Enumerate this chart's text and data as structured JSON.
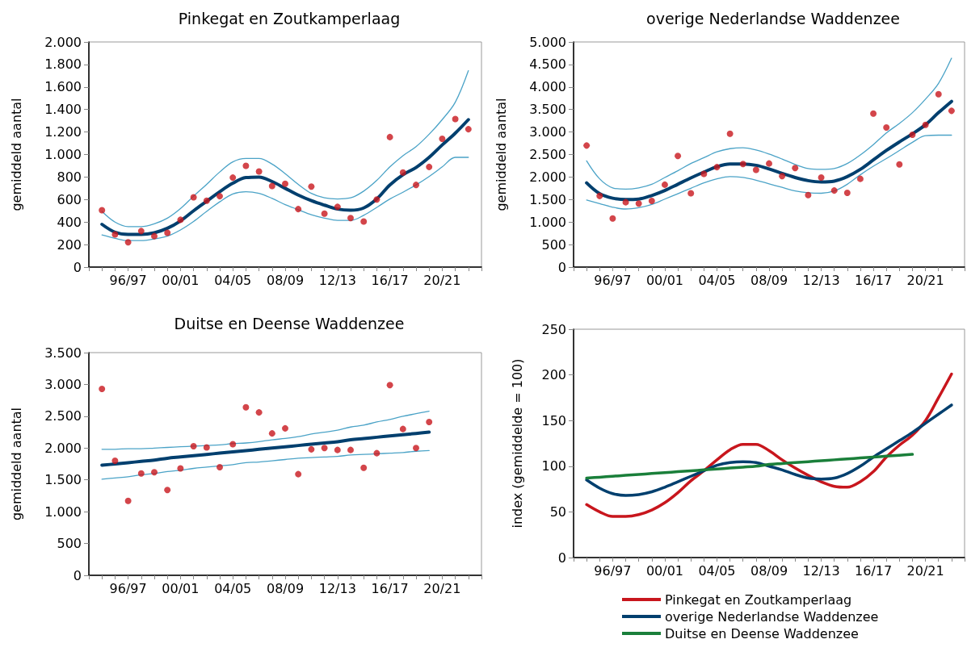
{
  "chart_data": [
    {
      "type": "line",
      "title": "Pinkegat en Zoutkamperlaag",
      "ylabel": "gemiddeld aantal",
      "categories": [
        null,
        null,
        null,
        "96/97",
        null,
        null,
        null,
        "00/01",
        null,
        null,
        null,
        "04/05",
        null,
        null,
        null,
        "08/09",
        null,
        null,
        null,
        "12/13",
        null,
        null,
        null,
        "16/17",
        null,
        null,
        null,
        "20/21",
        null,
        null,
        null
      ],
      "ylim": [
        0,
        2000
      ],
      "yticks": [
        0,
        200,
        400,
        600,
        800,
        {
          "value": 1000,
          "label": "1.000"
        },
        {
          "value": 1200,
          "label": "1.200"
        },
        {
          "value": 1400,
          "label": "1.400"
        },
        {
          "value": 1600,
          "label": "1.600"
        },
        {
          "value": 1800,
          "label": "1.800"
        },
        {
          "value": 2000,
          "label": "2.000"
        }
      ],
      "grid": false,
      "series": [
        {
          "color": "#4ba3c7",
          "values": [
            null,
            495,
            400,
            360,
            360,
            385,
            435,
            520,
            630,
            735,
            845,
            935,
            965,
            965,
            915,
            830,
            735,
            655,
            615,
            605,
            615,
            675,
            770,
            890,
            990,
            1070,
            1180,
            1310,
            1465,
            1745,
            null
          ]
        },
        {
          "color": "#003f6e",
          "values": [
            null,
            380,
            310,
            290,
            290,
            305,
            345,
            410,
            500,
            585,
            670,
            745,
            795,
            800,
            760,
            700,
            640,
            590,
            550,
            515,
            505,
            525,
            605,
            730,
            820,
            885,
            975,
            1085,
            1190,
            1310,
            null
          ]
        },
        {
          "color": "#4ba3c7",
          "values": [
            null,
            285,
            255,
            235,
            235,
            250,
            275,
            330,
            405,
            495,
            580,
            650,
            670,
            655,
            610,
            555,
            510,
            465,
            435,
            415,
            415,
            460,
            530,
            605,
            665,
            730,
            805,
            890,
            975,
            975,
            null
          ]
        },
        {
          "type": "scatter",
          "marker": "circle",
          "color": "#c8161d",
          "values": [
            null,
            505,
            290,
            220,
            320,
            275,
            305,
            420,
            620,
            590,
            630,
            795,
            900,
            850,
            720,
            740,
            515,
            715,
            475,
            535,
            435,
            405,
            600,
            1155,
            840,
            730,
            890,
            1140,
            1315,
            1225,
            null
          ]
        }
      ]
    },
    {
      "type": "line",
      "title": "overige Nederlandse Waddenzee",
      "ylabel": "gemiddeld aantal",
      "categories": [
        null,
        null,
        null,
        "96/97",
        null,
        null,
        null,
        "00/01",
        null,
        null,
        null,
        "04/05",
        null,
        null,
        null,
        "08/09",
        null,
        null,
        null,
        "12/13",
        null,
        null,
        null,
        "16/17",
        null,
        null,
        null,
        "20/21",
        null,
        null,
        null
      ],
      "ylim": [
        0,
        5000
      ],
      "yticks": [
        0,
        500,
        {
          "value": 1000,
          "label": "1.000"
        },
        {
          "value": 1500,
          "label": "1.500"
        },
        {
          "value": 2000,
          "label": "2.000"
        },
        {
          "value": 2500,
          "label": "2.500"
        },
        {
          "value": 3000,
          "label": "3.000"
        },
        {
          "value": 3500,
          "label": "3.500"
        },
        {
          "value": 4000,
          "label": "4.000"
        },
        {
          "value": 4500,
          "label": "4.500"
        },
        {
          "value": 5000,
          "label": "5.000"
        }
      ],
      "grid": false,
      "series": [
        {
          "color": "#4ba3c7",
          "values": [
            null,
            2360,
            1960,
            1760,
            1730,
            1760,
            1840,
            1990,
            2140,
            2300,
            2430,
            2560,
            2630,
            2650,
            2600,
            2510,
            2400,
            2280,
            2190,
            2170,
            2190,
            2300,
            2490,
            2720,
            2980,
            3190,
            3430,
            3730,
            4080,
            4640,
            null
          ]
        },
        {
          "color": "#003f6e",
          "values": [
            null,
            1870,
            1630,
            1530,
            1500,
            1510,
            1590,
            1700,
            1840,
            1980,
            2110,
            2230,
            2290,
            2290,
            2260,
            2180,
            2080,
            1990,
            1920,
            1890,
            1910,
            2010,
            2170,
            2380,
            2590,
            2780,
            2960,
            3160,
            3430,
            3680,
            null
          ]
        },
        {
          "color": "#4ba3c7",
          "values": [
            null,
            1490,
            1410,
            1330,
            1290,
            1320,
            1390,
            1510,
            1630,
            1750,
            1870,
            1960,
            2010,
            1990,
            1930,
            1850,
            1770,
            1690,
            1650,
            1640,
            1690,
            1840,
            2050,
            2240,
            2410,
            2590,
            2770,
            2920,
            2930,
            2930,
            null
          ]
        },
        {
          "type": "scatter",
          "marker": "circle",
          "color": "#c8161d",
          "values": [
            null,
            2700,
            1580,
            1080,
            1440,
            1410,
            1470,
            1830,
            2470,
            1640,
            2070,
            2220,
            2960,
            2290,
            2160,
            2300,
            2020,
            2200,
            1600,
            1990,
            1700,
            1650,
            1960,
            3410,
            3100,
            2280,
            2940,
            3160,
            3840,
            3470,
            null
          ]
        }
      ]
    },
    {
      "type": "line",
      "title": "Duitse en Deense Waddenzee",
      "ylabel": "gemiddeld aantal",
      "categories": [
        null,
        null,
        null,
        "96/97",
        null,
        null,
        null,
        "00/01",
        null,
        null,
        null,
        "04/05",
        null,
        null,
        null,
        "08/09",
        null,
        null,
        null,
        "12/13",
        null,
        null,
        null,
        "16/17",
        null,
        null,
        null,
        "20/21",
        null,
        null,
        null
      ],
      "ylim": [
        0,
        3500
      ],
      "yticks": [
        0,
        500,
        {
          "value": 1000,
          "label": "1.000"
        },
        {
          "value": 1500,
          "label": "1.500"
        },
        {
          "value": 2000,
          "label": "2.000"
        },
        {
          "value": 2500,
          "label": "2.500"
        },
        {
          "value": 3000,
          "label": "3.000"
        },
        {
          "value": 3500,
          "label": "3.500"
        }
      ],
      "grid": false,
      "series": [
        {
          "color": "#4ba3c7",
          "values": [
            null,
            1980,
            1980,
            1990,
            1990,
            2000,
            2010,
            2020,
            2030,
            2040,
            2050,
            2070,
            2080,
            2100,
            2130,
            2150,
            2180,
            2220,
            2250,
            2280,
            2330,
            2360,
            2410,
            2450,
            2500,
            2540,
            2580,
            null,
            null,
            null,
            null
          ]
        },
        {
          "color": "#003f6e",
          "values": [
            null,
            1730,
            1750,
            1770,
            1790,
            1810,
            1840,
            1860,
            1880,
            1900,
            1920,
            1940,
            1960,
            1980,
            2000,
            2020,
            2040,
            2060,
            2080,
            2100,
            2130,
            2150,
            2170,
            2190,
            2210,
            2230,
            2250,
            null,
            null,
            null,
            null
          ]
        },
        {
          "color": "#4ba3c7",
          "values": [
            null,
            1510,
            1530,
            1550,
            1580,
            1600,
            1630,
            1650,
            1680,
            1700,
            1720,
            1740,
            1770,
            1780,
            1800,
            1820,
            1840,
            1850,
            1860,
            1870,
            1890,
            1900,
            1910,
            1920,
            1930,
            1950,
            1960,
            null,
            null,
            null,
            null
          ]
        },
        {
          "type": "scatter",
          "marker": "circle",
          "color": "#c8161d",
          "values": [
            null,
            2930,
            1800,
            1170,
            1600,
            1620,
            1340,
            1680,
            2030,
            2010,
            1700,
            2060,
            2640,
            2560,
            2230,
            2310,
            1590,
            1980,
            2000,
            1970,
            1970,
            1690,
            1920,
            2990,
            2300,
            2000,
            2410,
            null,
            null,
            null,
            null
          ]
        }
      ]
    },
    {
      "type": "line",
      "ylabel": "index (gemiddelde = 100)",
      "categories": [
        null,
        null,
        null,
        "96/97",
        null,
        null,
        null,
        "00/01",
        null,
        null,
        null,
        "04/05",
        null,
        null,
        null,
        "08/09",
        null,
        null,
        null,
        "12/13",
        null,
        null,
        null,
        "16/17",
        null,
        null,
        null,
        "20/21",
        null,
        null,
        null
      ],
      "ylim": [
        0,
        250
      ],
      "yticks": [
        0,
        50,
        100,
        150,
        200,
        250
      ],
      "grid": false,
      "legend": "bottom",
      "series": [
        {
          "name": "Pinkegat en Zoutkamperlaag",
          "color": "#c8161d",
          "values": [
            null,
            58,
            50,
            45,
            45,
            47,
            52,
            60,
            71,
            84,
            95,
            107,
            118,
            124,
            124,
            117,
            107,
            98,
            90,
            83,
            78,
            77,
            83,
            94,
            110,
            123,
            134,
            150,
            175,
            201,
            null
          ]
        },
        {
          "name": "overige Nederlandse Waddenzee",
          "color": "#003f6e",
          "values": [
            null,
            85,
            76,
            70,
            68,
            69,
            72,
            77,
            83,
            89,
            95,
            101,
            104,
            105,
            104,
            100,
            96,
            91,
            87,
            86,
            87,
            92,
            100,
            110,
            119,
            128,
            137,
            147,
            157,
            167,
            null
          ]
        },
        {
          "name": "Duitse en Deense Waddenzee",
          "color": "#1a7f3a",
          "values": [
            null,
            87,
            88,
            89,
            90,
            91,
            92,
            93,
            94,
            95,
            96,
            97,
            98,
            99,
            100,
            102,
            103,
            104,
            105,
            106,
            107,
            108,
            109,
            110,
            111,
            112,
            113,
            null,
            null,
            null,
            null
          ]
        }
      ]
    }
  ]
}
